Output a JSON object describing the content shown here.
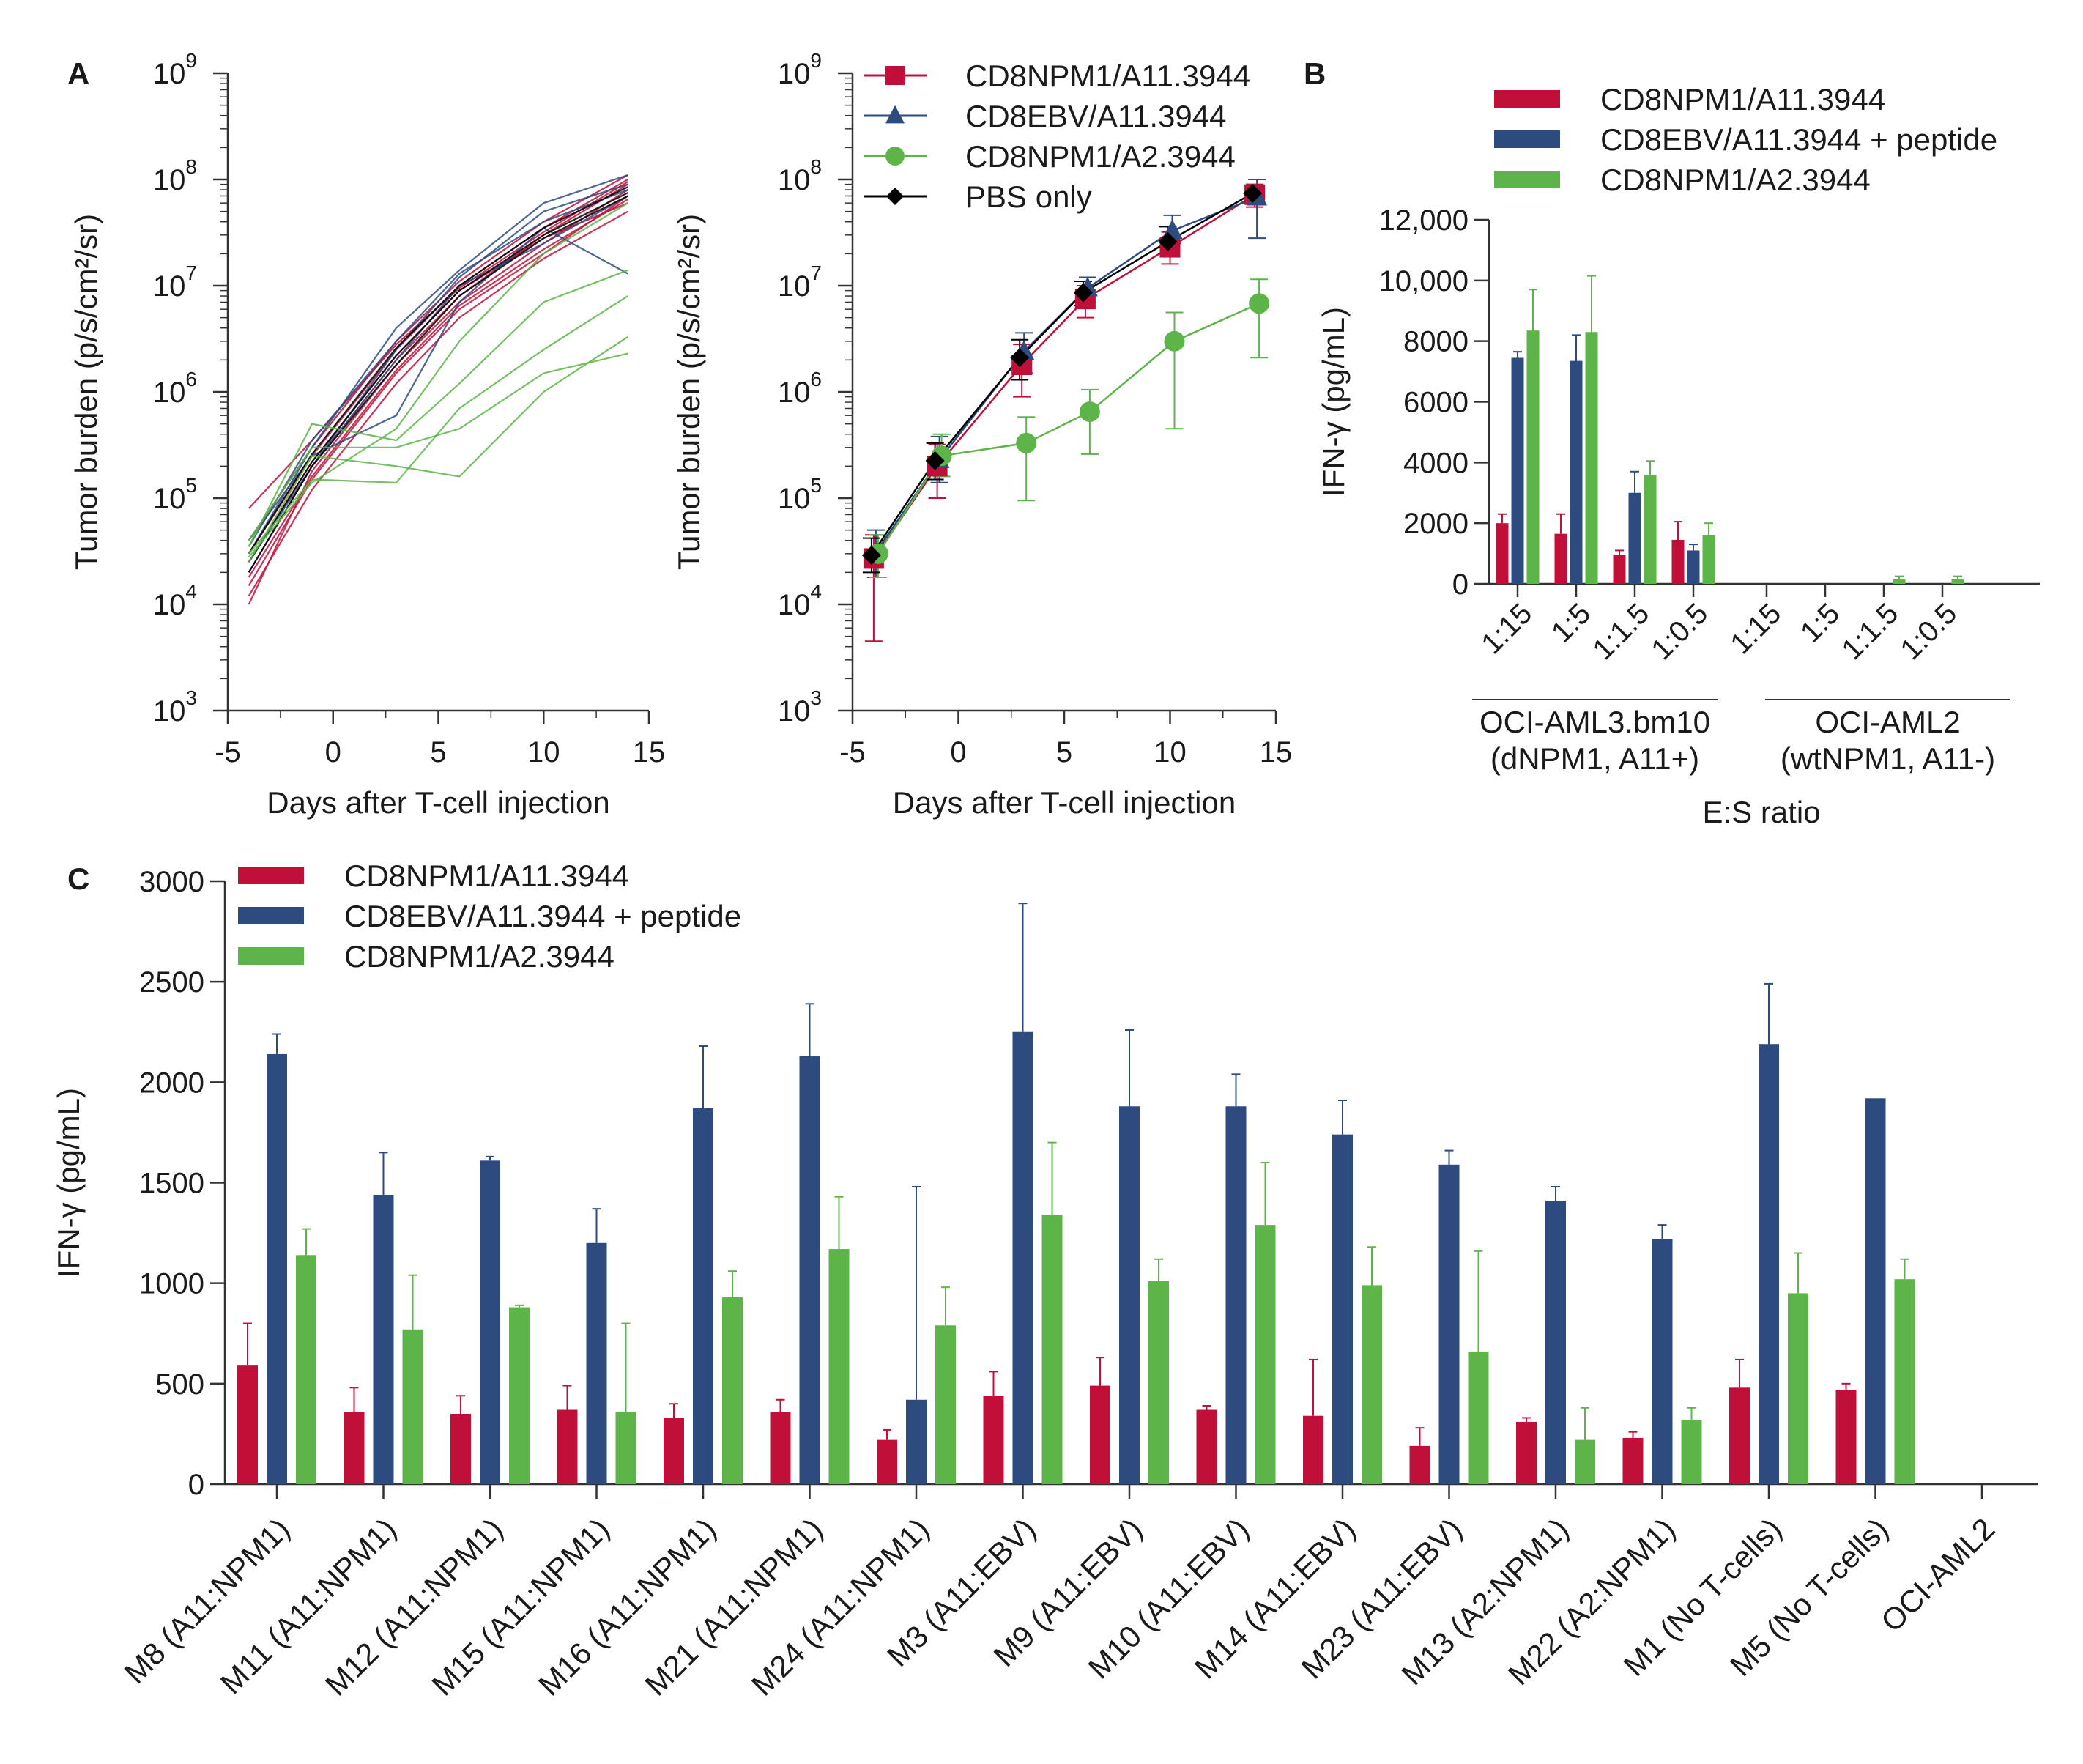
{
  "colors": {
    "red": "#c0103a",
    "blue": "#2e4b7f",
    "green": "#5db54a",
    "black": "#000000",
    "axis": "#333333"
  },
  "chart_data": [
    {
      "id": "A1",
      "panel_letter": "A",
      "type": "line",
      "xlabel": "Days after T-cell injection",
      "ylabel": "Tumor burden (p/s/cm²/sr)",
      "xlim": [
        -5,
        15
      ],
      "xticks": [
        "-5",
        "0",
        "5",
        "10",
        "15"
      ],
      "yscale": "log",
      "ylim": [
        1000,
        1000000000
      ],
      "ytick_exponents": [
        "3",
        "4",
        "5",
        "6",
        "7",
        "8",
        "9"
      ],
      "ytick_base": "10",
      "x": [
        -4,
        -1,
        3,
        6,
        10,
        14
      ],
      "series": [
        {
          "group": "red",
          "values": [
            20000,
            200000,
            2000000,
            8000000,
            30000000,
            90000000
          ]
        },
        {
          "group": "red",
          "values": [
            30000,
            250000,
            2500000,
            10000000,
            35000000,
            100000000
          ]
        },
        {
          "group": "red",
          "values": [
            15000,
            150000,
            1500000,
            6000000,
            20000000,
            70000000
          ]
        },
        {
          "group": "red",
          "values": [
            10000,
            180000,
            1800000,
            7000000,
            25000000,
            80000000
          ]
        },
        {
          "group": "red",
          "values": [
            25000,
            220000,
            2200000,
            9000000,
            28000000,
            60000000
          ]
        },
        {
          "group": "red",
          "values": [
            40000,
            300000,
            3000000,
            11000000,
            40000000,
            110000000
          ]
        },
        {
          "group": "red",
          "values": [
            12000,
            120000,
            1200000,
            5000000,
            18000000,
            50000000
          ]
        },
        {
          "group": "red",
          "values": [
            80000,
            350000,
            2800000,
            9500000,
            32000000,
            95000000
          ]
        },
        {
          "group": "red",
          "values": [
            18000,
            160000,
            1600000,
            6500000,
            22000000,
            65000000
          ]
        },
        {
          "group": "blue",
          "values": [
            30000,
            300000,
            4000000,
            14000000,
            60000000,
            110000000
          ]
        },
        {
          "group": "blue",
          "values": [
            20000,
            200000,
            2500000,
            12000000,
            50000000,
            90000000
          ]
        },
        {
          "group": "blue",
          "values": [
            40000,
            250000,
            600000,
            7000000,
            35000000,
            13000000
          ]
        },
        {
          "group": "blue",
          "values": [
            25000,
            200000,
            2000000,
            10000000,
            25000000,
            70000000
          ]
        },
        {
          "group": "blue",
          "values": [
            35000,
            350000,
            3000000,
            13000000,
            40000000,
            80000000
          ]
        },
        {
          "group": "black",
          "values": [
            25000,
            220000,
            2200000,
            9000000,
            30000000,
            75000000
          ]
        },
        {
          "group": "black",
          "values": [
            30000,
            260000,
            2600000,
            10000000,
            35000000,
            85000000
          ]
        },
        {
          "group": "black",
          "values": [
            20000,
            200000,
            1800000,
            8000000,
            28000000,
            70000000
          ]
        },
        {
          "group": "green",
          "values": [
            35000,
            500000,
            350000,
            1200000,
            7000000,
            14000000
          ]
        },
        {
          "group": "green",
          "values": [
            30000,
            150000,
            140000,
            700000,
            2500000,
            8000000
          ]
        },
        {
          "group": "green",
          "values": [
            25000,
            250000,
            200000,
            160000,
            1000000,
            3300000
          ]
        },
        {
          "group": "green",
          "values": [
            40000,
            300000,
            300000,
            450000,
            1500000,
            2300000
          ]
        },
        {
          "group": "green",
          "values": [
            28000,
            140000,
            450000,
            3000000,
            20000000,
            60000000
          ]
        }
      ]
    },
    {
      "id": "A2",
      "type": "line",
      "xlabel": "Days after T-cell injection",
      "ylabel": "Tumor burden (p/s/cm²/sr)",
      "xlim": [
        -5,
        15
      ],
      "xticks": [
        "-5",
        "0",
        "5",
        "10",
        "15"
      ],
      "yscale": "log",
      "ylim": [
        1000,
        1000000000
      ],
      "ytick_exponents": [
        "3",
        "4",
        "5",
        "6",
        "7",
        "8",
        "9"
      ],
      "ytick_base": "10",
      "x": [
        -4,
        -1,
        3,
        6,
        10,
        14
      ],
      "legend": [
        "CD8NPM1/A11.3944",
        "CD8EBV/A11.3944",
        "CD8NPM1/A2.3944",
        "PBS only"
      ],
      "series": [
        {
          "name": "CD8NPM1/A11.3944",
          "color": "red",
          "marker": "square",
          "values": [
            27000,
            200000,
            1800000,
            7500000,
            23000000,
            72000000
          ],
          "err_low": [
            4500,
            100000,
            900000,
            5000000,
            16000000,
            55000000
          ],
          "err_high": [
            45000,
            320000,
            2800000,
            10000000,
            32000000,
            90000000
          ]
        },
        {
          "name": "CD8EBV/A11.3944",
          "color": "blue",
          "marker": "triangle",
          "values": [
            31000,
            230000,
            2400000,
            9500000,
            33000000,
            68000000
          ],
          "err_low": [
            18000,
            140000,
            1500000,
            7000000,
            25000000,
            28000000
          ],
          "err_high": [
            50000,
            380000,
            3600000,
            12000000,
            46000000,
            100000000
          ]
        },
        {
          "name": "CD8NPM1/A2.3944",
          "color": "green",
          "marker": "circle",
          "values": [
            30000,
            250000,
            330000,
            650000,
            3000000,
            6800000
          ],
          "err_low": [
            18000,
            160000,
            95000,
            260000,
            450000,
            2100000
          ],
          "err_high": [
            45000,
            400000,
            580000,
            1050000,
            5600000,
            11500000
          ]
        },
        {
          "name": "PBS only",
          "color": "black",
          "marker": "diamond",
          "values": [
            29000,
            225000,
            2100000,
            8600000,
            26000000,
            74000000
          ],
          "err_low": [
            20000,
            150000,
            1300000,
            6500000,
            20000000,
            60000000
          ],
          "err_high": [
            42000,
            330000,
            3100000,
            11000000,
            36000000,
            88000000
          ]
        }
      ]
    },
    {
      "id": "B",
      "panel_letter": "B",
      "type": "bar",
      "ylabel": "IFN-γ (pg/mL)",
      "xlabel": "E:S ratio",
      "ylim": [
        0,
        12000
      ],
      "yticks": [
        "0",
        "2000",
        "4000",
        "6000",
        "8000",
        "10,000",
        "12,000"
      ],
      "ytick_values": [
        0,
        2000,
        4000,
        6000,
        8000,
        10000,
        12000
      ],
      "categories": [
        "1:15",
        "1:5",
        "1:1.5",
        "1:0.5",
        "1:15",
        "1:5",
        "1:1.5",
        "1:0.5"
      ],
      "groups": [
        {
          "label1": "OCI-AML3.bm10",
          "label2": "(dNPM1, A11+)"
        },
        {
          "label1": "OCI-AML2",
          "label2": "(wtNPM1, A11-)"
        }
      ],
      "legend": [
        "CD8NPM1/A11.3944",
        "CD8EBV/A11.3944 + peptide",
        "CD8NPM1/A2.3944"
      ],
      "series": [
        {
          "name": "CD8NPM1/A11.3944",
          "color": "red",
          "values": [
            2000,
            1650,
            950,
            1450,
            0,
            0,
            0,
            0
          ],
          "errors": [
            300,
            650,
            150,
            600,
            0,
            0,
            0,
            0
          ]
        },
        {
          "name": "CD8EBV/A11.3944 + peptide",
          "color": "blue",
          "values": [
            7450,
            7350,
            3000,
            1100,
            0,
            0,
            0,
            0
          ],
          "errors": [
            200,
            850,
            700,
            200,
            0,
            0,
            0,
            0
          ]
        },
        {
          "name": "CD8NPM1/A2.3944",
          "color": "green",
          "values": [
            8350,
            8300,
            3600,
            1600,
            0,
            0,
            150,
            150
          ],
          "errors": [
            1350,
            1850,
            450,
            400,
            0,
            0,
            100,
            100
          ]
        }
      ]
    },
    {
      "id": "C",
      "panel_letter": "C",
      "type": "bar",
      "ylabel": "IFN-γ (pg/mL)",
      "ylim": [
        0,
        3000
      ],
      "yticks": [
        "0",
        "500",
        "1000",
        "1500",
        "2000",
        "2500",
        "3000"
      ],
      "ytick_values": [
        0,
        500,
        1000,
        1500,
        2000,
        2500,
        3000
      ],
      "categories": [
        "M8 (A11:NPM1)",
        "M11 (A11:NPM1)",
        "M12 (A11:NPM1)",
        "M15 (A11:NPM1)",
        "M16 (A11:NPM1)",
        "M21 (A11:NPM1)",
        "M24 (A11:NPM1)",
        "M3 (A11:EBV)",
        "M9 (A11:EBV)",
        "M10 (A11:EBV)",
        "M14 (A11:EBV)",
        "M23 (A11:EBV)",
        "M13 (A2:NPM1)",
        "M22 (A2:NPM1)",
        "M1 (No T-cells)",
        "M5 (No T-cells)",
        "OCI-AML2"
      ],
      "legend": [
        "CD8NPM1/A11.3944",
        "CD8EBV/A11.3944 + peptide",
        "CD8NPM1/A2.3944"
      ],
      "series": [
        {
          "name": "CD8NPM1/A11.3944",
          "color": "red",
          "values": [
            590,
            360,
            350,
            370,
            330,
            360,
            220,
            440,
            490,
            370,
            340,
            190,
            310,
            230,
            480,
            470,
            0
          ],
          "errors": [
            210,
            120,
            90,
            120,
            70,
            60,
            50,
            120,
            140,
            20,
            280,
            90,
            20,
            30,
            140,
            30,
            0
          ]
        },
        {
          "name": "CD8EBV/A11.3944 + peptide",
          "color": "blue",
          "values": [
            2140,
            1440,
            1610,
            1200,
            1870,
            2130,
            420,
            2250,
            1880,
            1880,
            1740,
            1590,
            1410,
            1220,
            2190,
            1920,
            0
          ],
          "errors": [
            100,
            210,
            20,
            170,
            310,
            260,
            1060,
            640,
            380,
            160,
            170,
            70,
            70,
            70,
            300,
            0,
            0
          ]
        },
        {
          "name": "CD8NPM1/A2.3944",
          "color": "green",
          "values": [
            1140,
            770,
            880,
            360,
            930,
            1170,
            790,
            1340,
            1010,
            1290,
            990,
            660,
            220,
            320,
            950,
            1020,
            0
          ],
          "errors": [
            130,
            270,
            10,
            440,
            130,
            260,
            190,
            360,
            110,
            310,
            190,
            500,
            160,
            60,
            200,
            100,
            0
          ]
        }
      ]
    }
  ]
}
